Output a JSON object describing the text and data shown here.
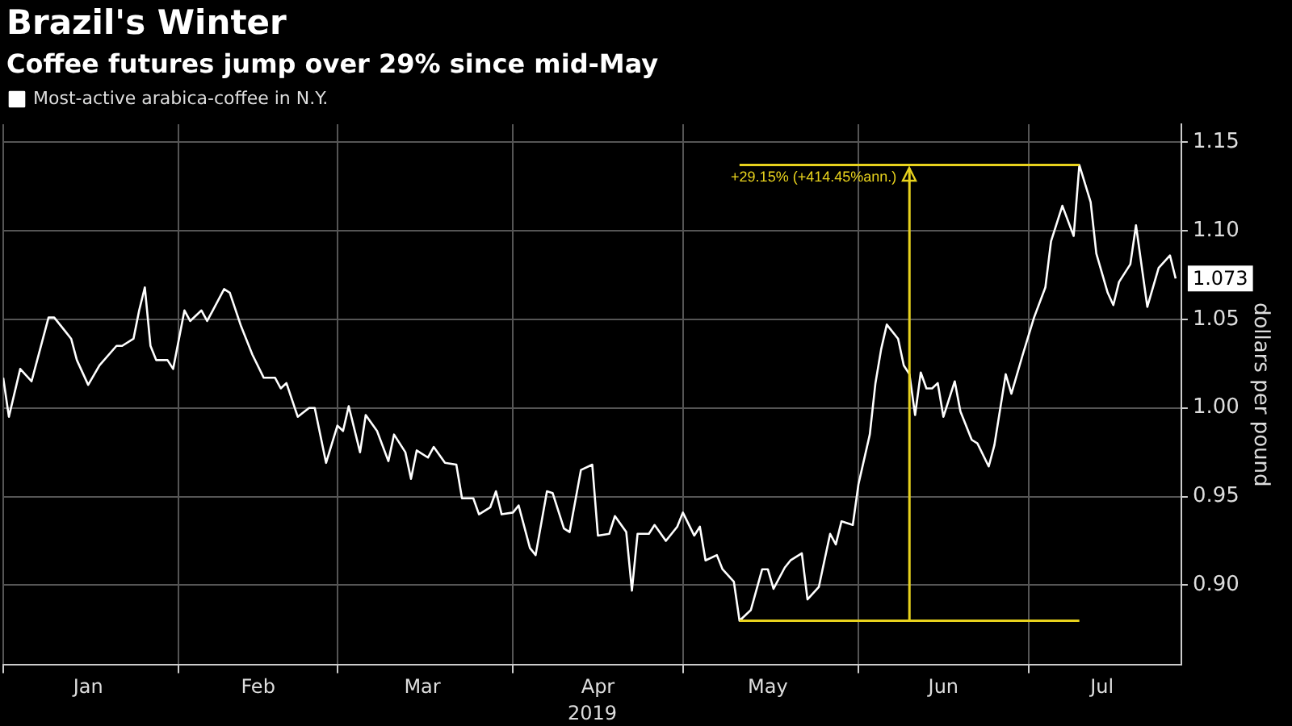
{
  "chart_data": {
    "type": "line",
    "title": "Brazil's Winter",
    "subtitle": "Coffee futures jump over 29% since mid-May",
    "xlabel": "2019",
    "ylabel": "dollars per pound",
    "x": [
      "2019-01-01",
      "2019-01-02",
      "2019-01-04",
      "2019-01-06",
      "2019-01-07",
      "2019-01-09",
      "2019-01-10",
      "2019-01-12",
      "2019-01-13",
      "2019-01-14",
      "2019-01-16",
      "2019-01-18",
      "2019-01-21",
      "2019-01-22",
      "2019-01-24",
      "2019-01-25",
      "2019-01-26",
      "2019-01-27",
      "2019-01-28",
      "2019-01-30",
      "2019-01-31",
      "2019-02-02",
      "2019-02-03",
      "2019-02-05",
      "2019-02-06",
      "2019-02-07",
      "2019-02-09",
      "2019-02-10",
      "2019-02-12",
      "2019-02-14",
      "2019-02-16",
      "2019-02-18",
      "2019-02-19",
      "2019-02-20",
      "2019-02-22",
      "2019-02-24",
      "2019-02-25",
      "2019-02-27",
      "2019-03-01",
      "2019-03-02",
      "2019-03-03",
      "2019-03-05",
      "2019-03-06",
      "2019-03-08",
      "2019-03-10",
      "2019-03-11",
      "2019-03-13",
      "2019-03-14",
      "2019-03-15",
      "2019-03-17",
      "2019-03-18",
      "2019-03-20",
      "2019-03-22",
      "2019-03-23",
      "2019-03-25",
      "2019-03-26",
      "2019-03-28",
      "2019-03-29",
      "2019-03-30",
      "2019-04-01",
      "2019-04-02",
      "2019-04-04",
      "2019-04-05",
      "2019-04-07",
      "2019-04-08",
      "2019-04-10",
      "2019-04-11",
      "2019-04-13",
      "2019-04-15",
      "2019-04-16",
      "2019-04-18",
      "2019-04-19",
      "2019-04-21",
      "2019-04-22",
      "2019-04-23",
      "2019-04-25",
      "2019-04-26",
      "2019-04-28",
      "2019-04-30",
      "2019-05-01",
      "2019-05-03",
      "2019-05-04",
      "2019-05-05",
      "2019-05-07",
      "2019-05-08",
      "2019-05-10",
      "2019-05-11",
      "2019-05-13",
      "2019-05-15",
      "2019-05-16",
      "2019-05-17",
      "2019-05-19",
      "2019-05-20",
      "2019-05-22",
      "2019-05-23",
      "2019-05-25",
      "2019-05-27",
      "2019-05-28",
      "2019-05-29",
      "2019-05-31",
      "2019-06-01",
      "2019-06-03",
      "2019-06-04",
      "2019-06-05",
      "2019-06-06",
      "2019-06-08",
      "2019-06-09",
      "2019-06-10",
      "2019-06-11",
      "2019-06-12",
      "2019-06-13",
      "2019-06-14",
      "2019-06-15",
      "2019-06-16",
      "2019-06-18",
      "2019-06-19",
      "2019-06-21",
      "2019-06-22",
      "2019-06-24",
      "2019-06-25",
      "2019-06-27",
      "2019-06-28",
      "2019-06-30",
      "2019-07-02",
      "2019-07-04",
      "2019-07-05",
      "2019-07-07",
      "2019-07-09",
      "2019-07-10",
      "2019-07-12",
      "2019-07-13",
      "2019-07-15",
      "2019-07-16",
      "2019-07-17",
      "2019-07-19",
      "2019-07-20",
      "2019-07-22",
      "2019-07-24",
      "2019-07-26",
      "2019-07-27"
    ],
    "series": [
      {
        "name": "Most-active arabica-coffee in N.Y.",
        "color": "#ffffff",
        "values": [
          1.017,
          0.995,
          1.022,
          1.015,
          1.027,
          1.051,
          1.051,
          1.043,
          1.039,
          1.027,
          1.013,
          1.024,
          1.035,
          1.035,
          1.039,
          1.055,
          1.068,
          1.035,
          1.027,
          1.027,
          1.022,
          1.055,
          1.049,
          1.055,
          1.049,
          1.055,
          1.067,
          1.065,
          1.046,
          1.03,
          1.017,
          1.017,
          1.011,
          1.014,
          0.995,
          1.0,
          1.0,
          0.969,
          0.99,
          0.987,
          1.001,
          0.975,
          0.996,
          0.987,
          0.97,
          0.985,
          0.975,
          0.96,
          0.976,
          0.972,
          0.978,
          0.969,
          0.968,
          0.949,
          0.949,
          0.94,
          0.944,
          0.953,
          0.94,
          0.941,
          0.945,
          0.921,
          0.917,
          0.953,
          0.952,
          0.932,
          0.93,
          0.965,
          0.968,
          0.928,
          0.929,
          0.939,
          0.93,
          0.897,
          0.929,
          0.929,
          0.934,
          0.925,
          0.933,
          0.941,
          0.928,
          0.933,
          0.914,
          0.917,
          0.909,
          0.902,
          0.88,
          0.886,
          0.909,
          0.909,
          0.898,
          0.91,
          0.914,
          0.918,
          0.892,
          0.899,
          0.929,
          0.923,
          0.936,
          0.934,
          0.957,
          0.985,
          1.014,
          1.033,
          1.047,
          1.039,
          1.024,
          1.019,
          0.996,
          1.02,
          1.011,
          1.011,
          1.014,
          0.995,
          1.015,
          0.998,
          0.982,
          0.98,
          0.967,
          0.979,
          1.019,
          1.008,
          1.03,
          1.051,
          1.068,
          1.094,
          1.114,
          1.097,
          1.137,
          1.116,
          1.087,
          1.065,
          1.058,
          1.071,
          1.081,
          1.103,
          1.057,
          1.079,
          1.086,
          1.073
        ]
      }
    ],
    "xlim": [
      "2019-01-01",
      "2019-07-28"
    ],
    "xticks": [
      {
        "value": "2019-01-01",
        "label": null
      },
      {
        "value": "2019-01-16",
        "label": "Jan"
      },
      {
        "value": "2019-02-01",
        "label": null
      },
      {
        "value": "2019-02-15",
        "label": "Feb"
      },
      {
        "value": "2019-03-01",
        "label": null
      },
      {
        "value": "2019-03-16",
        "label": "Mar"
      },
      {
        "value": "2019-04-01",
        "label": null
      },
      {
        "value": "2019-04-16",
        "label": "Apr"
      },
      {
        "value": "2019-05-01",
        "label": null
      },
      {
        "value": "2019-05-16",
        "label": "May"
      },
      {
        "value": "2019-06-01",
        "label": null
      },
      {
        "value": "2019-06-16",
        "label": "Jun"
      },
      {
        "value": "2019-07-01",
        "label": null
      },
      {
        "value": "2019-07-14",
        "label": "Jul"
      }
    ],
    "ylim": [
      0.855,
      1.16
    ],
    "yticks": [
      {
        "value": 0.9,
        "label": "0.90"
      },
      0.95,
      {
        "value": 1.0,
        "label": "1.00"
      },
      1.05,
      {
        "value": 1.1,
        "label": "1.10"
      },
      1.15
    ],
    "annotations": [
      {
        "text": "1.073",
        "x": "2019-07-27",
        "y": 1.073
      }
    ],
    "ref_lines": [
      {
        "axis": "y",
        "value": 1.137,
        "label": "+29.15% (+414.45%ann.)",
        "color": "#e8d21d"
      },
      {
        "axis": "y",
        "value": 0.88,
        "color": "#e8d21d"
      },
      {
        "axis": "x",
        "value": "2019-06-10",
        "color": "#e8d21d"
      }
    ],
    "grid": true,
    "legend": "top left",
    "marker": "none",
    "line_style": "solid"
  }
}
